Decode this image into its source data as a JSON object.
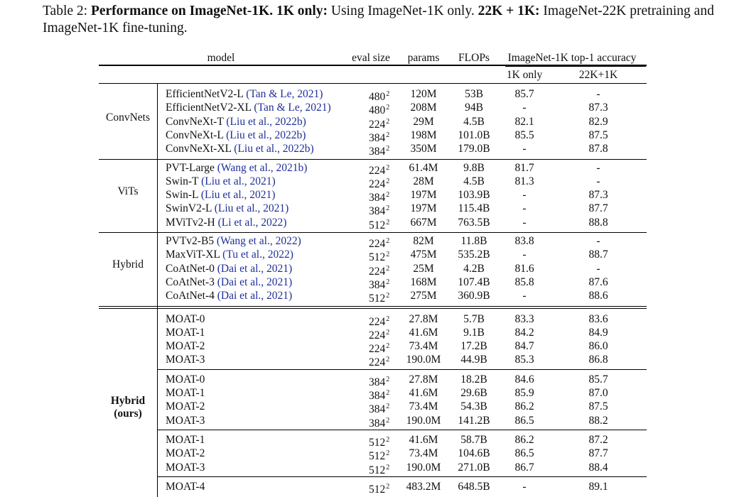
{
  "caption": {
    "label": "Table 2:",
    "bold_title": "Performance on ImageNet-1K",
    "part1_key": "1K only:",
    "part1_text": "Using ImageNet-1K only.",
    "part2_key": "22K + 1K:",
    "part2_text": "ImageNet-22K pretraining and ImageNet-1K fine-tuning."
  },
  "headers": {
    "model": "model",
    "eval_size": "eval size",
    "params": "params",
    "flops": "FLOPs",
    "accuracy": "ImageNet-1K top-1 accuracy",
    "acc_1k": "1K only",
    "acc_22k": "22K+1K"
  },
  "groups": [
    {
      "label": "ConvNets",
      "rows": [
        {
          "model": "EfficientNetV2-L",
          "cite": "(Tan & Le, 2021)",
          "res": "480",
          "exp": "2",
          "params": "120M",
          "flops": "53B",
          "acc1k": "85.7",
          "acc22k": "-"
        },
        {
          "model": "EfficientNetV2-XL",
          "cite": "(Tan & Le, 2021)",
          "res": "480",
          "exp": "2",
          "params": "208M",
          "flops": "94B",
          "acc1k": "-",
          "acc22k": "87.3"
        },
        {
          "model": "ConvNeXt-T",
          "cite": "(Liu et al., 2022b)",
          "res": "224",
          "exp": "2",
          "params": "29M",
          "flops": "4.5B",
          "acc1k": "82.1",
          "acc22k": "82.9"
        },
        {
          "model": "ConvNeXt-L",
          "cite": "(Liu et al., 2022b)",
          "res": "384",
          "exp": "2",
          "params": "198M",
          "flops": "101.0B",
          "acc1k": "85.5",
          "acc22k": "87.5"
        },
        {
          "model": "ConvNeXt-XL",
          "cite": "(Liu et al., 2022b)",
          "res": "384",
          "exp": "2",
          "params": "350M",
          "flops": "179.0B",
          "acc1k": "-",
          "acc22k": "87.8"
        }
      ]
    },
    {
      "label": "ViTs",
      "rows": [
        {
          "model": "PVT-Large",
          "cite": "(Wang et al., 2021b)",
          "res": "224",
          "exp": "2",
          "params": "61.4M",
          "flops": "9.8B",
          "acc1k": "81.7",
          "acc22k": "-"
        },
        {
          "model": "Swin-T",
          "cite": "(Liu et al., 2021)",
          "res": "224",
          "exp": "2",
          "params": "28M",
          "flops": "4.5B",
          "acc1k": "81.3",
          "acc22k": "-"
        },
        {
          "model": "Swin-L",
          "cite": "(Liu et al., 2021)",
          "res": "384",
          "exp": "2",
          "params": "197M",
          "flops": "103.9B",
          "acc1k": "-",
          "acc22k": "87.3"
        },
        {
          "model": "SwinV2-L",
          "cite": "(Liu et al., 2021)",
          "res": "384",
          "exp": "2",
          "params": "197M",
          "flops": "115.4B",
          "acc1k": "-",
          "acc22k": "87.7"
        },
        {
          "model": "MViTv2-H",
          "cite": "(Li et al., 2022)",
          "res": "512",
          "exp": "2",
          "params": "667M",
          "flops": "763.5B",
          "acc1k": "-",
          "acc22k": "88.8"
        }
      ]
    },
    {
      "label": "Hybrid",
      "rows": [
        {
          "model": "PVTv2-B5",
          "cite": "(Wang et al., 2022)",
          "res": "224",
          "exp": "2",
          "params": "82M",
          "flops": "11.8B",
          "acc1k": "83.8",
          "acc22k": "-"
        },
        {
          "model": "MaxViT-XL",
          "cite": "(Tu et al., 2022)",
          "res": "512",
          "exp": "2",
          "params": "475M",
          "flops": "535.2B",
          "acc1k": "-",
          "acc22k": "88.7"
        },
        {
          "model": "CoAtNet-0",
          "cite": "(Dai et al., 2021)",
          "res": "224",
          "exp": "2",
          "params": "25M",
          "flops": "4.2B",
          "acc1k": "81.6",
          "acc22k": "-"
        },
        {
          "model": "CoAtNet-3",
          "cite": "(Dai et al., 2021)",
          "res": "384",
          "exp": "2",
          "params": "168M",
          "flops": "107.4B",
          "acc1k": "85.8",
          "acc22k": "87.6"
        },
        {
          "model": "CoAtNet-4",
          "cite": "(Dai et al., 2021)",
          "res": "512",
          "exp": "2",
          "params": "275M",
          "flops": "360.9B",
          "acc1k": "-",
          "acc22k": "88.6"
        }
      ]
    }
  ],
  "ours": {
    "label_line1": "Hybrid",
    "label_line2": "(ours)",
    "blocks": [
      [
        {
          "model": "MOAT-0",
          "res": "224",
          "exp": "2",
          "params": "27.8M",
          "flops": "5.7B",
          "acc1k": "83.3",
          "acc22k": "83.6"
        },
        {
          "model": "MOAT-1",
          "res": "224",
          "exp": "2",
          "params": "41.6M",
          "flops": "9.1B",
          "acc1k": "84.2",
          "acc22k": "84.9"
        },
        {
          "model": "MOAT-2",
          "res": "224",
          "exp": "2",
          "params": "73.4M",
          "flops": "17.2B",
          "acc1k": "84.7",
          "acc22k": "86.0"
        },
        {
          "model": "MOAT-3",
          "res": "224",
          "exp": "2",
          "params": "190.0M",
          "flops": "44.9B",
          "acc1k": "85.3",
          "acc22k": "86.8"
        }
      ],
      [
        {
          "model": "MOAT-0",
          "res": "384",
          "exp": "2",
          "params": "27.8M",
          "flops": "18.2B",
          "acc1k": "84.6",
          "acc22k": "85.7"
        },
        {
          "model": "MOAT-1",
          "res": "384",
          "exp": "2",
          "params": "41.6M",
          "flops": "29.6B",
          "acc1k": "85.9",
          "acc22k": "87.0"
        },
        {
          "model": "MOAT-2",
          "res": "384",
          "exp": "2",
          "params": "73.4M",
          "flops": "54.3B",
          "acc1k": "86.2",
          "acc22k": "87.5"
        },
        {
          "model": "MOAT-3",
          "res": "384",
          "exp": "2",
          "params": "190.0M",
          "flops": "141.2B",
          "acc1k": "86.5",
          "acc22k": "88.2"
        }
      ],
      [
        {
          "model": "MOAT-1",
          "res": "512",
          "exp": "2",
          "params": "41.6M",
          "flops": "58.7B",
          "acc1k": "86.2",
          "acc22k": "87.2"
        },
        {
          "model": "MOAT-2",
          "res": "512",
          "exp": "2",
          "params": "73.4M",
          "flops": "104.6B",
          "acc1k": "86.5",
          "acc22k": "87.7"
        },
        {
          "model": "MOAT-3",
          "res": "512",
          "exp": "2",
          "params": "190.0M",
          "flops": "271.0B",
          "acc1k": "86.7",
          "acc22k": "88.4"
        }
      ],
      [
        {
          "model": "MOAT-4",
          "res": "512",
          "exp": "2",
          "params": "483.2M",
          "flops": "648.5B",
          "acc1k": "-",
          "acc22k": "89.1"
        }
      ]
    ]
  }
}
